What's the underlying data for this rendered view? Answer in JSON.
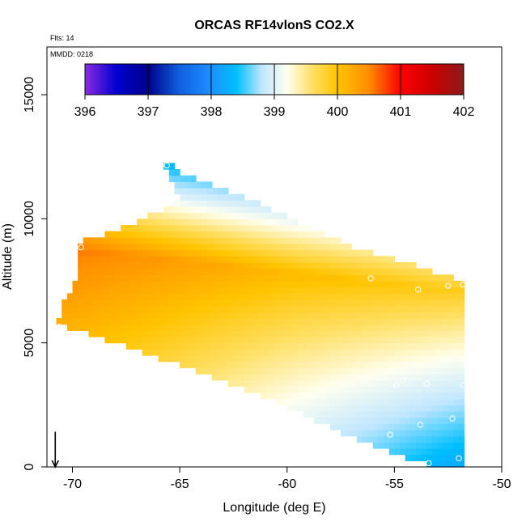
{
  "chart_data": {
    "type": "heatmap",
    "title": "ORCAS RF14vlonS CO2.X",
    "annotations": {
      "flights": "Flts: 14",
      "date": "MMDD: 0218"
    },
    "xlabel": "Longitude (deg E)",
    "ylabel": "Altitude (m)",
    "xlim": [
      -71,
      -50
    ],
    "ylim": [
      0,
      16500
    ],
    "x_ticks": [
      -70,
      -65,
      -60,
      -55,
      -50
    ],
    "x_tick_labels": [
      "-70",
      "-65",
      "-60",
      "-55",
      "-50"
    ],
    "y_ticks": [
      0,
      5000,
      10000,
      15000
    ],
    "y_tick_labels": [
      "0",
      "5000",
      "10000",
      "15000"
    ],
    "colorbar": {
      "min": 396,
      "max": 402,
      "ticks": [
        396,
        397,
        398,
        399,
        400,
        401,
        402
      ],
      "tick_labels": [
        "396",
        "397",
        "398",
        "399",
        "400",
        "401",
        "402"
      ],
      "colors": [
        {
          "v": 396.0,
          "c": "#8b2be2"
        },
        {
          "v": 396.5,
          "c": "#0000d0"
        },
        {
          "v": 397.0,
          "c": "#00008b"
        },
        {
          "v": 397.5,
          "c": "#1060e0"
        },
        {
          "v": 398.0,
          "c": "#1e90ff"
        },
        {
          "v": 398.4,
          "c": "#00bfff"
        },
        {
          "v": 398.8,
          "c": "#bfe6ff"
        },
        {
          "v": 399.2,
          "c": "#fffff0"
        },
        {
          "v": 399.6,
          "c": "#ffe066"
        },
        {
          "v": 400.0,
          "c": "#ffc400"
        },
        {
          "v": 400.5,
          "c": "#ff8c00"
        },
        {
          "v": 401.0,
          "c": "#ff0000"
        },
        {
          "v": 401.5,
          "c": "#cc0000"
        },
        {
          "v": 402.0,
          "c": "#8b1a1a"
        }
      ]
    },
    "field_polygon": [
      [
        -65.8,
        12400
      ],
      [
        -65.0,
        11900
      ],
      [
        -62.0,
        10900
      ],
      [
        -57.0,
        8900
      ],
      [
        -51.8,
        7500
      ],
      [
        -51.8,
        0
      ],
      [
        -53.2,
        0
      ],
      [
        -57.0,
        1200
      ],
      [
        -61.0,
        2800
      ],
      [
        -64.0,
        3800
      ],
      [
        -67.0,
        4700
      ],
      [
        -70.0,
        5600
      ],
      [
        -70.8,
        5700
      ],
      [
        -70.3,
        6900
      ],
      [
        -69.8,
        7500
      ],
      [
        -69.6,
        9100
      ],
      [
        -68.0,
        9500
      ],
      [
        -65.0,
        10700
      ]
    ],
    "profile_model": {
      "ridge_alt_at_lon": [
        [
          -70,
          8800
        ],
        [
          -60,
          7800
        ],
        [
          -52,
          7100
        ]
      ],
      "peak_value_at_lon": [
        [
          -70,
          400.6
        ],
        [
          -60,
          400.1
        ],
        [
          -52,
          399.9
        ]
      ],
      "ridge_width_m": 4500,
      "top_value": 398.0,
      "bottom_value_at_lon": [
        [
          -70,
          399.5
        ],
        [
          -60,
          398.8
        ],
        [
          -52,
          398.2
        ]
      ]
    },
    "flight_points": [
      {
        "lon": -65.6,
        "alt": 12150
      },
      {
        "lon": -69.6,
        "alt": 8850
      },
      {
        "lon": -70.6,
        "alt": 5650
      },
      {
        "lon": -56.1,
        "alt": 7600
      },
      {
        "lon": -53.9,
        "alt": 7150
      },
      {
        "lon": -52.5,
        "alt": 7300
      },
      {
        "lon": -51.8,
        "alt": 7350
      },
      {
        "lon": -53.5,
        "alt": 3350
      },
      {
        "lon": -51.8,
        "alt": 3300
      },
      {
        "lon": -54.6,
        "alt": 3500
      },
      {
        "lon": -54.9,
        "alt": 3300
      },
      {
        "lon": -52.3,
        "alt": 1950
      },
      {
        "lon": -53.8,
        "alt": 1700
      },
      {
        "lon": -55.2,
        "alt": 1300
      },
      {
        "lon": -55.0,
        "alt": 150
      },
      {
        "lon": -53.4,
        "alt": 150
      },
      {
        "lon": -52.0,
        "alt": 350
      }
    ],
    "arrow": {
      "lon": -70.8,
      "alt_from": 700,
      "alt_to": 0
    }
  }
}
